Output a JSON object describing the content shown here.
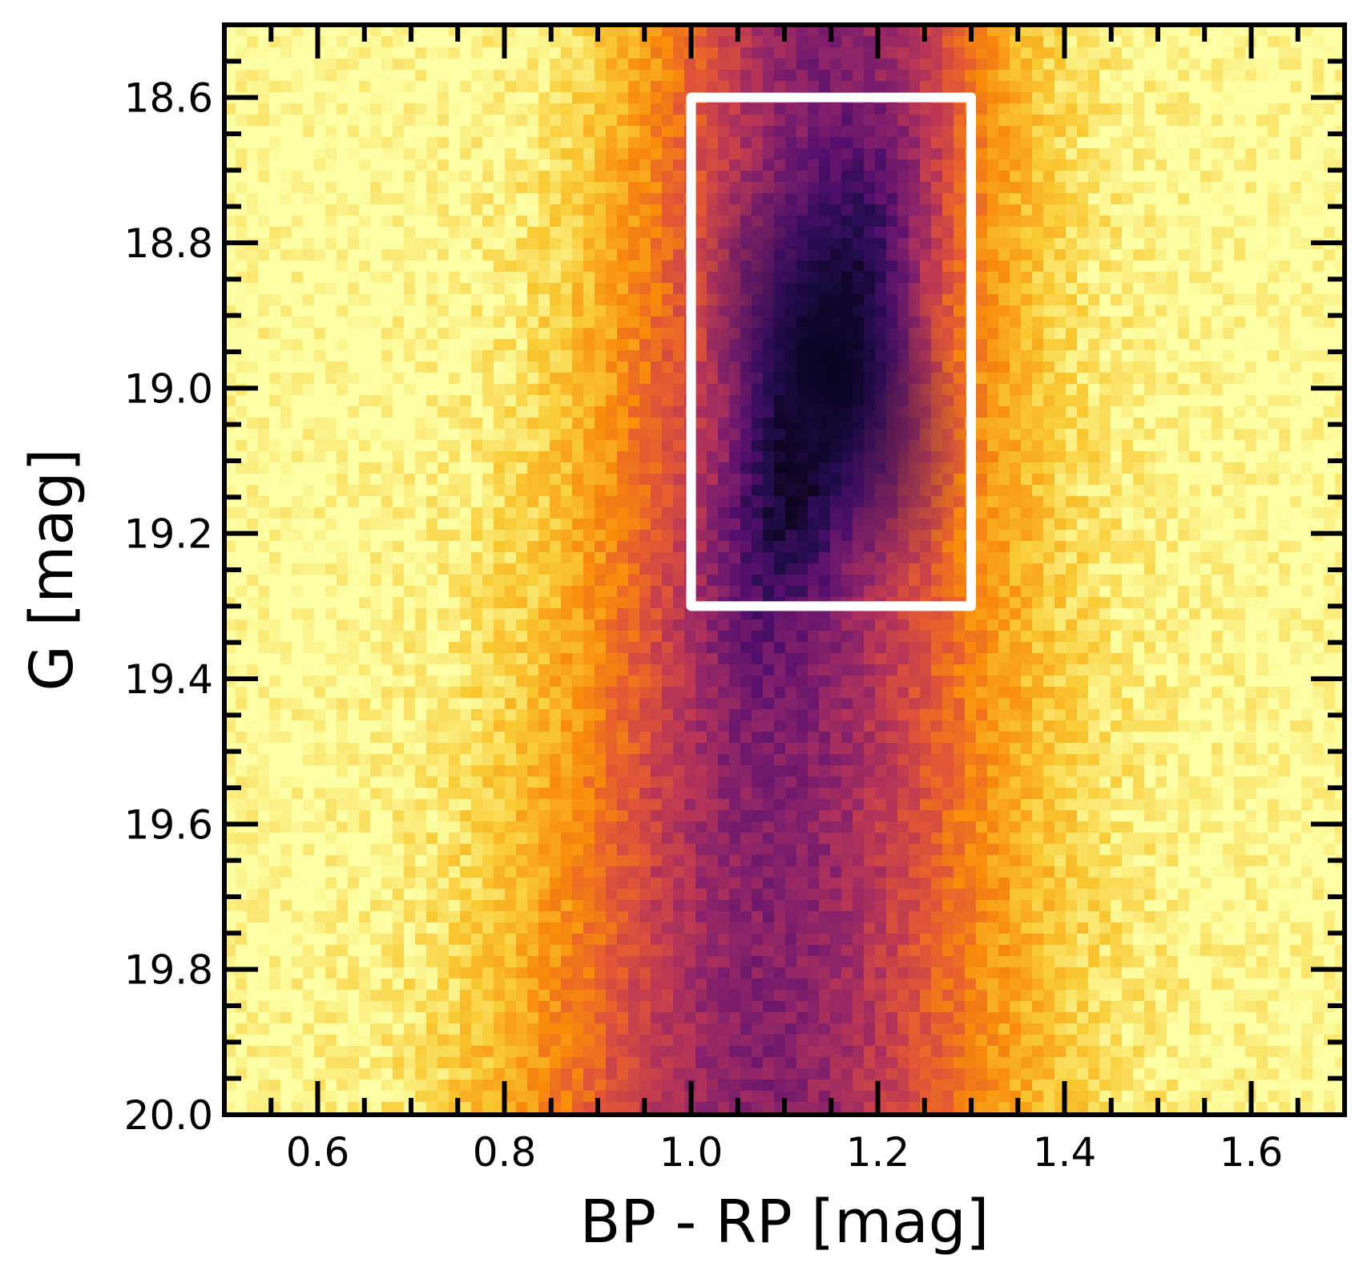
{
  "chart_data": {
    "type": "heatmap",
    "title": "",
    "xlabel": "BP - RP [mag]",
    "ylabel": "G [mag]",
    "xlim": [
      0.5,
      1.7
    ],
    "ylim": [
      20.0,
      18.5
    ],
    "y_inverted": true,
    "x_ticks": [
      {
        "value": 0.6,
        "label": "0.6"
      },
      {
        "value": 0.8,
        "label": "0.8"
      },
      {
        "value": 1.0,
        "label": "1.0"
      },
      {
        "value": 1.2,
        "label": "1.2"
      },
      {
        "value": 1.4,
        "label": "1.4"
      },
      {
        "value": 1.6,
        "label": "1.6"
      }
    ],
    "y_ticks": [
      {
        "value": 18.6,
        "label": "18.6"
      },
      {
        "value": 18.8,
        "label": "18.8"
      },
      {
        "value": 19.0,
        "label": "19.0"
      },
      {
        "value": 19.2,
        "label": "19.2"
      },
      {
        "value": 19.4,
        "label": "19.4"
      },
      {
        "value": 19.6,
        "label": "19.6"
      },
      {
        "value": 19.8,
        "label": "19.8"
      },
      {
        "value": 20.0,
        "label": "20.0"
      }
    ],
    "x_minor_step": 0.05,
    "y_minor_step": 0.05,
    "colormap": "inferno",
    "density_peak": {
      "x": 1.15,
      "y": 18.97
    },
    "selection_box": {
      "x": [
        1.0,
        1.3
      ],
      "y": [
        18.6,
        19.3
      ],
      "color": "#ffffff"
    },
    "grid": false,
    "legend": "none"
  }
}
